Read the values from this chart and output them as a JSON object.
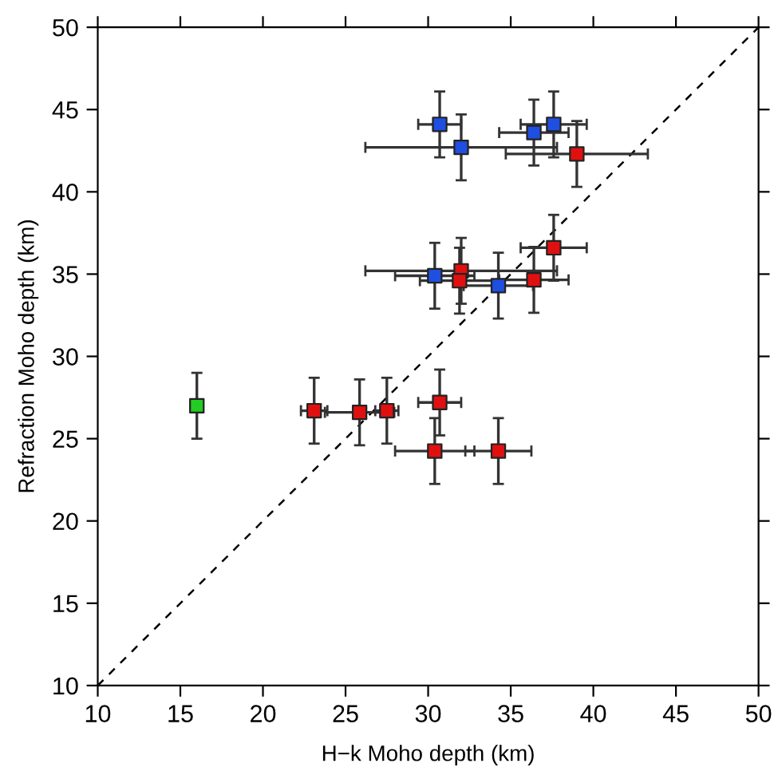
{
  "chart_data": {
    "type": "scatter",
    "xlabel": "H−k Moho depth (km)",
    "ylabel": "Refraction Moho depth (km)",
    "xlim": [
      10,
      50
    ],
    "ylim": [
      10,
      50
    ],
    "xticks": [
      10,
      15,
      20,
      25,
      30,
      35,
      40,
      45,
      50
    ],
    "yticks": [
      10,
      15,
      20,
      25,
      30,
      35,
      40,
      45,
      50
    ],
    "grid": false,
    "legend": false,
    "marker": "square",
    "series": [
      {
        "type": "line",
        "color": "#000000",
        "line_style": "dashed",
        "marker": "none",
        "x": [
          10,
          50
        ],
        "values": [
          10,
          50
        ]
      },
      {
        "color": "#1f4fe0",
        "x": [
          30.7,
          32.0,
          36.4,
          37.6,
          30.4,
          34.25
        ],
        "values": [
          44.1,
          42.7,
          43.6,
          44.1,
          34.9,
          34.3
        ],
        "xerrors": [
          1.3,
          5.8,
          2.1,
          2.0,
          2.4,
          2.1
        ],
        "errors": [
          2.0,
          2.0,
          2.0,
          2.0,
          2.0,
          2.0
        ]
      },
      {
        "color": "#e01010",
        "x": [
          39.0,
          37.6,
          32.0,
          31.9,
          36.4,
          23.1,
          25.85,
          27.5,
          30.7,
          30.4,
          34.25
        ],
        "values": [
          42.3,
          36.6,
          35.2,
          34.6,
          34.65,
          26.7,
          26.6,
          26.7,
          27.2,
          24.25,
          24.25
        ],
        "xerrors": [
          4.3,
          2.0,
          5.8,
          2.4,
          2.1,
          0.8,
          2.1,
          0.7,
          1.3,
          2.4,
          2.0
        ],
        "errors": [
          2.0,
          2.0,
          2.0,
          2.0,
          2.0,
          2.0,
          2.0,
          2.0,
          2.0,
          2.0,
          2.0
        ]
      },
      {
        "color": "#22cc22",
        "x": [
          16.0
        ],
        "values": [
          27.0
        ],
        "errors": [
          2.0
        ]
      }
    ]
  }
}
